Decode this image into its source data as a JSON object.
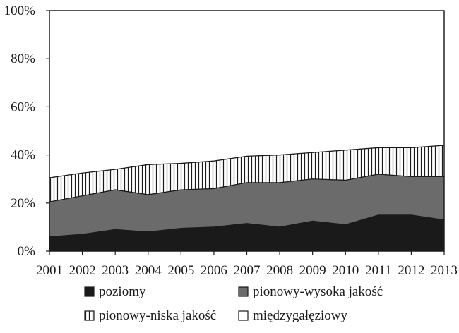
{
  "chart_data": {
    "type": "area",
    "stacked": true,
    "percent": true,
    "categories": [
      "2001",
      "2002",
      "2003",
      "2004",
      "2005",
      "2006",
      "2007",
      "2008",
      "2009",
      "2010",
      "2011",
      "2012",
      "2013"
    ],
    "series": [
      {
        "name": "poziomy",
        "pattern": "solid-dark",
        "color": "#1a1a1a",
        "values": [
          6,
          7,
          9,
          8,
          9.5,
          10,
          11.5,
          10,
          12.5,
          11,
          15,
          15,
          13
        ]
      },
      {
        "name": "pionowy-wysoka jakość",
        "pattern": "solid-gray",
        "color": "#6b6b6b",
        "values": [
          14.5,
          16,
          16.5,
          15.5,
          16,
          16,
          17,
          18.5,
          17.5,
          18.5,
          17,
          16,
          18
        ]
      },
      {
        "name": "pionowy-niska jakość",
        "pattern": "vertical-lines",
        "color": "#1a1a1a",
        "values": [
          10,
          9.5,
          8.5,
          12.5,
          11,
          11.5,
          11,
          11.5,
          11,
          12.5,
          11,
          12,
          13
        ]
      },
      {
        "name": "międzygałęziowy",
        "pattern": "white",
        "color": "#ffffff",
        "values": [
          69.5,
          67.5,
          66,
          64,
          63.5,
          62.5,
          60.5,
          60,
          59,
          58,
          57,
          57,
          56
        ]
      }
    ],
    "y_ticks": [
      "0%",
      "20%",
      "40%",
      "60%",
      "80%",
      "100%"
    ],
    "ylim": [
      0,
      100
    ],
    "grid": false,
    "legend_position": "bottom"
  }
}
